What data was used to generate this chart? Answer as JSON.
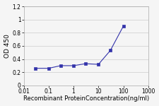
{
  "x": [
    0.03,
    0.1,
    0.3,
    1,
    3,
    10,
    30,
    100
  ],
  "y": [
    0.26,
    0.26,
    0.3,
    0.3,
    0.33,
    0.32,
    0.53,
    0.9
  ],
  "line_color": "#3333aa",
  "marker": "s",
  "marker_size": 2.5,
  "marker_facecolor": "#3333aa",
  "xlabel": "Recombinant ProteinConcentration(ng/ml)",
  "ylabel": "OD 450",
  "xlim": [
    0.01,
    1000
  ],
  "ylim": [
    0,
    1.2
  ],
  "yticks": [
    0,
    0.2,
    0.4,
    0.6,
    0.8,
    1.0,
    1.2
  ],
  "ytick_labels": [
    "0",
    "0.2",
    "0.4",
    "0.6",
    "0.8",
    "1",
    "1.2"
  ],
  "xtick_labels": [
    "0.01",
    "0.1",
    "1",
    "10",
    "100",
    "1000"
  ],
  "xtick_vals": [
    0.01,
    0.1,
    1,
    10,
    100,
    1000
  ],
  "xlabel_fontsize": 6.0,
  "ylabel_fontsize": 6.5,
  "tick_fontsize": 5.5,
  "grid_color": "#cccccc",
  "background_color": "#f5f5f5"
}
